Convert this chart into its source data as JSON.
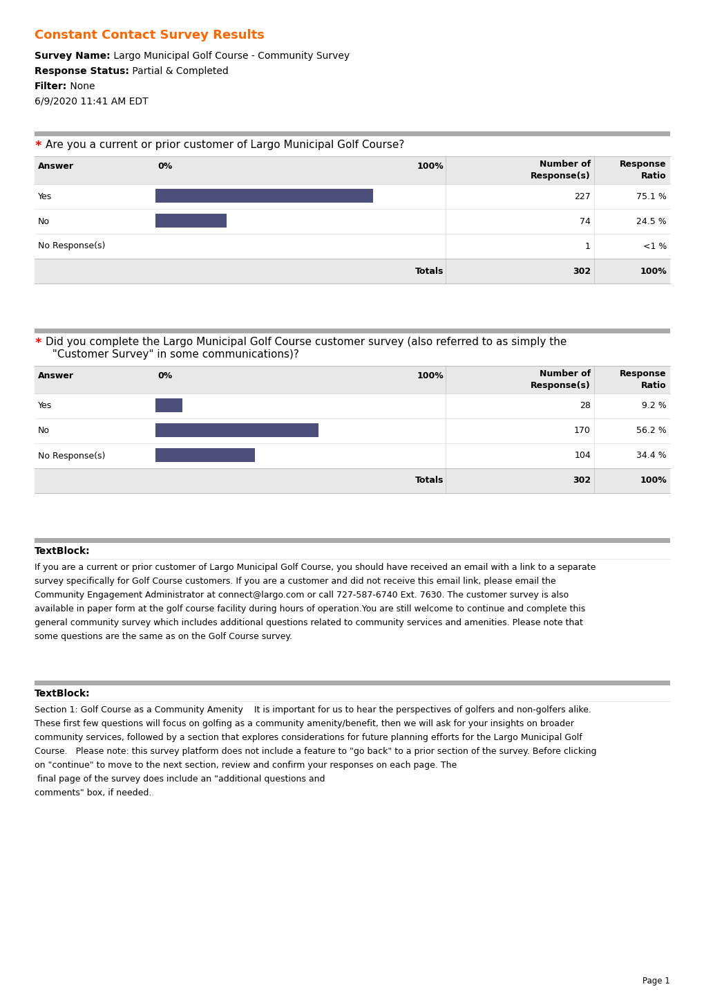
{
  "title": "Constant Contact Survey Results",
  "title_color": "#FF6600",
  "meta": [
    {
      "bold": "Survey Name:",
      "normal": " Largo Municipal Golf Course - Community Survey"
    },
    {
      "bold": "Response Status:",
      "normal": " Partial & Completed"
    },
    {
      "bold": "Filter:",
      "normal": " None"
    },
    {
      "bold": "",
      "normal": "6/9/2020 11:41 AM EDT"
    }
  ],
  "questions": [
    {
      "question_parts": [
        {
          "text": "Are you a current or prior customer of Largo Municipal Golf Course?",
          "line": 1
        }
      ],
      "answers": [
        "Yes",
        "No",
        "No Response(s)"
      ],
      "responses": [
        227,
        74,
        1
      ],
      "ratios": [
        "75.1 %",
        "24.5 %",
        "<1 %"
      ],
      "total_responses": 302,
      "total_ratio": "100%",
      "bar_values": [
        75.1,
        24.5,
        0.3
      ]
    },
    {
      "question_parts": [
        {
          "text": "Did you complete the Largo Municipal Golf Course customer survey (also referred to as simply the",
          "line": 1
        },
        {
          "text": "  \"Customer Survey\" in some communications)?",
          "line": 2
        }
      ],
      "answers": [
        "Yes",
        "No",
        "No Response(s)"
      ],
      "responses": [
        28,
        170,
        104
      ],
      "ratios": [
        "9.2 %",
        "56.2 %",
        "34.4 %"
      ],
      "total_responses": 302,
      "total_ratio": "100%",
      "bar_values": [
        9.2,
        56.2,
        34.4
      ]
    }
  ],
  "textblocks": [
    {
      "label": "TextBlock:",
      "lines": [
        "If you are a current or prior customer of Largo Municipal Golf Course, you should have received an email with a link to a separate",
        "survey specifically for Golf Course customers. If you are a customer and did not receive this email link, please email the",
        "Community Engagement Administrator at connect@largo.com or call 727-587-6740 Ext. 7630. The customer survey is also",
        "available in paper form at the golf course facility during hours of operation.You are still welcome to continue and complete this",
        "general community survey which includes additional questions related to community services and amenities. Please note that",
        "some questions are the same as on the Golf Course survey."
      ]
    },
    {
      "label": "TextBlock:",
      "lines": [
        "Section 1: Golf Course as a Community Amenity    It is important for us to hear the perspectives of golfers and non-golfers alike.",
        "These first few questions will focus on golfing as a community amenity/benefit, then we will ask for your insights on broader",
        "community services, followed by a section that explores considerations for future planning efforts for the Largo Municipal Golf",
        "Course.   Please note: this survey platform does not include a feature to \"go back\" to a prior section of the survey. Before clicking",
        "on \"continue\" to move to the next section, review and confirm your responses on each page. The",
        " final page of the survey does include an \"additional questions and",
        "comments\" box, if needed."
      ]
    }
  ],
  "bar_color": "#4C4F7C",
  "table_header_bg": "#E8E8E8",
  "table_total_bg": "#E8E8E8",
  "separator_color": "#AAAAAA",
  "page_bg": "#FFFFFF",
  "text_color": "#000000",
  "font_size_title": 13,
  "font_size_meta": 10,
  "font_size_question": 11,
  "font_size_table": 9,
  "font_size_textblock": 9
}
